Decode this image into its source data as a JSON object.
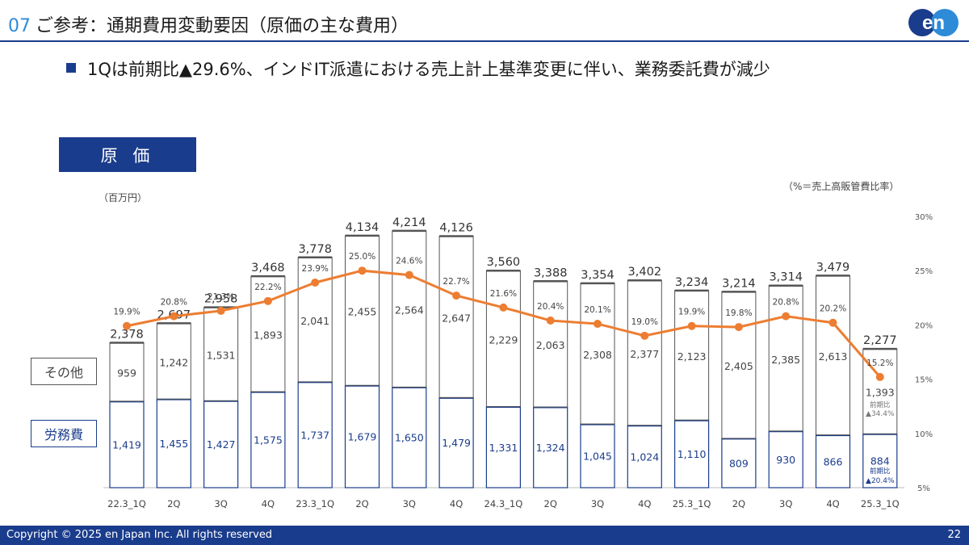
{
  "header": {
    "section_number": "07",
    "title": "ご参考：通期費用変動要因（原価の主な費用）"
  },
  "logo_text": "en",
  "bullet_text": "1Qは前期比▲29.6%、インドIT派遣における売上計上基準変更に伴い、業務委託費が減少",
  "section_label": "原 価",
  "unit_left": "（百万円）",
  "unit_right": "（%＝売上高販管費比率）",
  "legend": {
    "other": "その他",
    "labor": "労務費"
  },
  "footer": {
    "copyright": "Copyright © 2025 en Japan Inc. All rights reserved",
    "page": "22"
  },
  "colors": {
    "navy": "#1a3c8c",
    "orange": "#ed7d31",
    "gray_border": "#555555",
    "blue_accent": "#2e8bd8"
  },
  "chart_data": {
    "type": "bar",
    "stacked": true,
    "categories": [
      "22.3_1Q",
      "2Q",
      "3Q",
      "4Q",
      "23.3_1Q",
      "2Q",
      "3Q",
      "4Q",
      "24.3_1Q",
      "2Q",
      "3Q",
      "4Q",
      "25.3_1Q",
      "2Q",
      "3Q",
      "4Q",
      "25.3_1Q"
    ],
    "series": [
      {
        "name": "労務費",
        "values": [
          1419,
          1455,
          1427,
          1575,
          1737,
          1679,
          1650,
          1479,
          1331,
          1324,
          1045,
          1024,
          1110,
          809,
          930,
          866,
          884
        ]
      },
      {
        "name": "その他",
        "values": [
          959,
          1242,
          1531,
          1893,
          2041,
          2455,
          2564,
          2647,
          2229,
          2063,
          2308,
          2377,
          2123,
          2405,
          2385,
          2613,
          1393
        ]
      }
    ],
    "totals": [
      "2,378",
      "2,697",
      "2,958",
      "3,468",
      "3,778",
      "4,134",
      "4,214",
      "4,126",
      "3,560",
      "3,388",
      "3,354",
      "3,402",
      "3,234",
      "3,214",
      "3,314",
      "3,479",
      "2,277"
    ],
    "labor_labels": [
      "1,419",
      "1,455",
      "1,427",
      "1,575",
      "1,737",
      "1,679",
      "1,650",
      "1,479",
      "1,331",
      "1,324",
      "1,045",
      "1,024",
      "1,110",
      "809",
      "930",
      "866",
      "884"
    ],
    "other_labels": [
      "959",
      "1,242",
      "1,531",
      "1,893",
      "2,041",
      "2,455",
      "2,564",
      "2,647",
      "2,229",
      "2,063",
      "2,308",
      "2,377",
      "2,123",
      "2,405",
      "2,385",
      "2,613",
      "1,393"
    ],
    "line": {
      "values": [
        19.9,
        20.8,
        21.3,
        22.2,
        23.9,
        25.0,
        24.6,
        22.7,
        21.6,
        20.4,
        20.1,
        19.0,
        19.9,
        19.8,
        20.8,
        20.2,
        15.2
      ],
      "labels": [
        "19.9%",
        "20.8%",
        "21.3%",
        "22.2%",
        "23.9%",
        "25.0%",
        "24.6%",
        "22.7%",
        "21.6%",
        "20.4%",
        "20.1%",
        "19.0%",
        "19.9%",
        "19.8%",
        "20.8%",
        "20.2%",
        "15.2%"
      ]
    },
    "y_right_ticks": [
      "5%",
      "10%",
      "15%",
      "20%",
      "25%",
      "30%"
    ],
    "y_right_range": [
      5,
      30
    ],
    "annotations": {
      "other_yoy": {
        "label": "前期比",
        "value": "▲34.4%"
      },
      "labor_yoy": {
        "label": "前期比",
        "value": "▲20.4%"
      }
    }
  }
}
